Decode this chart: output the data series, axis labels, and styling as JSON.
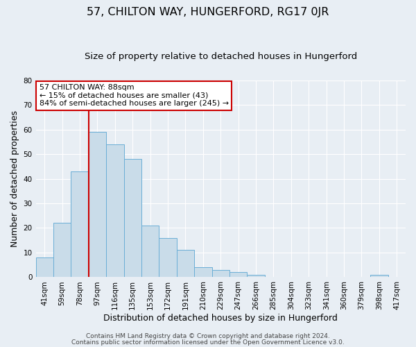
{
  "title": "57, CHILTON WAY, HUNGERFORD, RG17 0JR",
  "subtitle": "Size of property relative to detached houses in Hungerford",
  "xlabel": "Distribution of detached houses by size in Hungerford",
  "ylabel": "Number of detached properties",
  "bar_labels": [
    "41sqm",
    "59sqm",
    "78sqm",
    "97sqm",
    "116sqm",
    "135sqm",
    "153sqm",
    "172sqm",
    "191sqm",
    "210sqm",
    "229sqm",
    "247sqm",
    "266sqm",
    "285sqm",
    "304sqm",
    "323sqm",
    "341sqm",
    "360sqm",
    "379sqm",
    "398sqm",
    "417sqm"
  ],
  "bar_values": [
    8,
    22,
    43,
    59,
    54,
    48,
    21,
    16,
    11,
    4,
    3,
    2,
    1,
    0,
    0,
    0,
    0,
    0,
    0,
    1,
    0
  ],
  "bar_color": "#c9dce9",
  "bar_edge_color": "#6aaed6",
  "vline_color": "#cc0000",
  "vline_pos": 2.5,
  "ylim": [
    0,
    80
  ],
  "yticks": [
    0,
    10,
    20,
    30,
    40,
    50,
    60,
    70,
    80
  ],
  "annotation_line1": "57 CHILTON WAY: 88sqm",
  "annotation_line2": "← 15% of detached houses are smaller (43)",
  "annotation_line3": "84% of semi-detached houses are larger (245) →",
  "annotation_box_color": "#ffffff",
  "annotation_box_edge_color": "#cc0000",
  "bg_color": "#e8eef4",
  "grid_color": "#ffffff",
  "title_fontsize": 11.5,
  "subtitle_fontsize": 9.5,
  "xlabel_fontsize": 9,
  "ylabel_fontsize": 9,
  "tick_fontsize": 7.5,
  "annotation_fontsize": 8,
  "footer_fontsize": 6.5
}
